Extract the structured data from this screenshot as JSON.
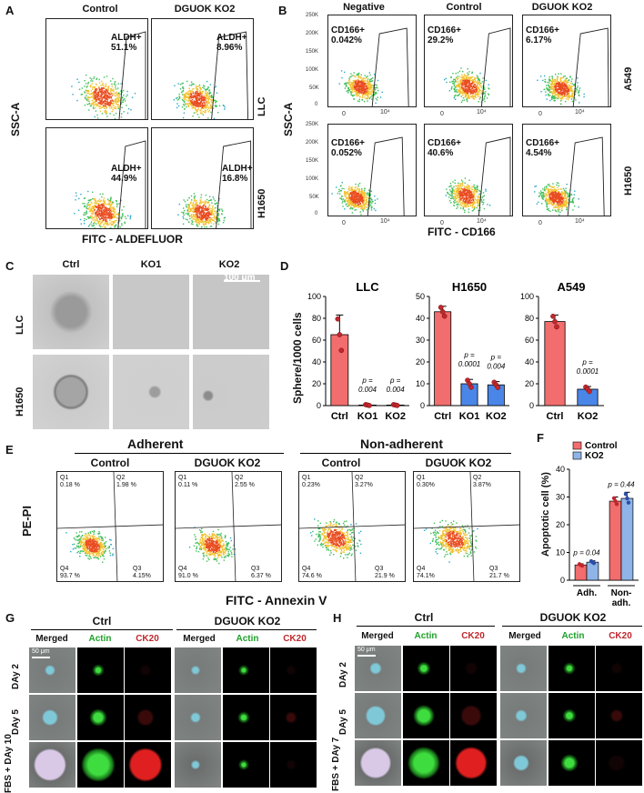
{
  "panels": {
    "A": {
      "letter": "A",
      "columns": [
        "Control",
        "DGUOK KO2"
      ],
      "rows": [
        "LLC",
        "H1650"
      ],
      "ylabel": "SSC-A",
      "xlabel": "FITC - ALDEFLUOR",
      "gates": [
        {
          "label": "ALDH+",
          "value": "51.1%"
        },
        {
          "label": "ALDH+",
          "value": "8.96%"
        },
        {
          "label": "ALDH+",
          "value": "44.9%"
        },
        {
          "label": "ALDH+",
          "value": "16.8%"
        }
      ]
    },
    "B": {
      "letter": "B",
      "columns": [
        "Negative",
        "Control",
        "DGUOK KO2"
      ],
      "rows": [
        "A549",
        "H1650"
      ],
      "ylabel": "SSC-A",
      "xlabel": "FITC - CD166",
      "gates": [
        {
          "label": "CD166+",
          "value": "0.042%"
        },
        {
          "label": "CD166+",
          "value": "29.2%"
        },
        {
          "label": "CD166+",
          "value": "6.17%"
        },
        {
          "label": "CD166+",
          "value": "0.052%"
        },
        {
          "label": "CD166+",
          "value": "40.6%"
        },
        {
          "label": "CD166+",
          "value": "4.54%"
        }
      ],
      "yticks": [
        "250K",
        "200K",
        "150K",
        "100K",
        "50K",
        "0"
      ],
      "xticks": [
        "0",
        "10⁴"
      ]
    },
    "C": {
      "letter": "C",
      "columns": [
        "Ctrl",
        "KO1",
        "KO2"
      ],
      "rows": [
        "LLC",
        "H1650"
      ],
      "scalebar": "100 μm"
    },
    "E": {
      "letter": "E",
      "groups": [
        "Adherent",
        "Non-adherent"
      ],
      "columns": [
        "Control",
        "DGUOK KO2",
        "Control",
        "DGUOK KO2"
      ],
      "ylabel": "PE-PI",
      "xlabel": "FITC - Annexin V",
      "quadrants": [
        {
          "q1": "Q1\n0.18 %",
          "q2": "Q2\n1.98 %",
          "q3": "Q3\n4.15%",
          "q4": "Q4\n93.7 %"
        },
        {
          "q1": "Q1\n0.11 %",
          "q2": "Q2\n2.55 %",
          "q3": "Q3\n6.37 %",
          "q4": "Q4\n91.0 %"
        },
        {
          "q1": "Q1\n0.23%",
          "q2": "Q2\n3.27%",
          "q3": "Q3\n21.9 %",
          "q4": "Q4\n74.6 %"
        },
        {
          "q1": "Q1\n0.30%",
          "q2": "Q2\n3.87%",
          "q3": "Q3\n21.7 %",
          "q4": "Q4\n74.1%"
        }
      ]
    },
    "G": {
      "letter": "G",
      "groups": [
        "Ctrl",
        "DGUOK KO2"
      ],
      "channels": [
        "Merged",
        "Actin",
        "CK20",
        "Merged",
        "Actin",
        "CK20"
      ],
      "rows": [
        "DAy 2",
        "DAy 5",
        "FBS + DAy 10"
      ],
      "scalebar": "50 μm"
    },
    "H": {
      "letter": "H",
      "groups": [
        "Ctrl",
        "DGUOK KO2"
      ],
      "channels": [
        "Merged",
        "Actin",
        "CK20",
        "Merged",
        "Actin",
        "CK20"
      ],
      "rows": [
        "DAy 2",
        "DAy 5",
        "FBS + DAy 7"
      ],
      "scalebar": "50 μm"
    }
  },
  "chart_data": [
    {
      "panel": "D",
      "type": "bar",
      "title": "LLC",
      "ylabel": "Sphere/1000 cells",
      "categories": [
        "Ctrl",
        "KO1",
        "KO2"
      ],
      "values": [
        65,
        0.5,
        0.5
      ],
      "errors": [
        18,
        0.5,
        0.5
      ],
      "ylim": [
        0,
        100
      ],
      "yticks": [
        0,
        20,
        40,
        60,
        80,
        100
      ],
      "colors": [
        "#f26d6d",
        "#4a86e8",
        "#4a86e8"
      ],
      "pvalues": [
        "",
        "p =\n0.004",
        "p =\n0.004"
      ]
    },
    {
      "panel": "D",
      "type": "bar",
      "title": "H1650",
      "categories": [
        "Ctrl",
        "KO1",
        "KO2"
      ],
      "values": [
        43,
        10,
        9.5
      ],
      "errors": [
        2.5,
        2,
        1.5
      ],
      "ylim": [
        0,
        50
      ],
      "yticks": [
        0,
        10,
        20,
        30,
        40,
        50
      ],
      "colors": [
        "#f26d6d",
        "#4a86e8",
        "#4a86e8"
      ],
      "pvalues": [
        "",
        "p =\n0.0001",
        "p =\n0.004"
      ]
    },
    {
      "panel": "D",
      "type": "bar",
      "title": "A549",
      "categories": [
        "Ctrl",
        "KO2"
      ],
      "values": [
        77,
        15
      ],
      "errors": [
        6,
        2.5
      ],
      "ylim": [
        0,
        100
      ],
      "yticks": [
        0,
        20,
        40,
        60,
        80,
        100
      ],
      "colors": [
        "#f26d6d",
        "#4a86e8"
      ],
      "pvalues": [
        "",
        "p =\n0.0001"
      ]
    },
    {
      "panel": "F",
      "type": "bar",
      "ylabel": "Apoptotic cell (%)",
      "categories": [
        "Adh.",
        "Non-\nadh."
      ],
      "series": [
        {
          "name": "Control",
          "values": [
            5.5,
            28.5
          ],
          "errors": [
            0.4,
            1.5
          ],
          "color": "#f26d6d"
        },
        {
          "name": "KO2",
          "values": [
            6.5,
            29.5
          ],
          "errors": [
            0.5,
            2.2
          ],
          "color": "#8fb4e8"
        }
      ],
      "ylim": [
        0,
        40
      ],
      "yticks": [
        0,
        10,
        20,
        30,
        40
      ],
      "pvalues": [
        "p = 0.04",
        "p = 0.44"
      ],
      "legend": "top"
    }
  ],
  "panel_D_letter": "D",
  "panel_F_letter": "F"
}
